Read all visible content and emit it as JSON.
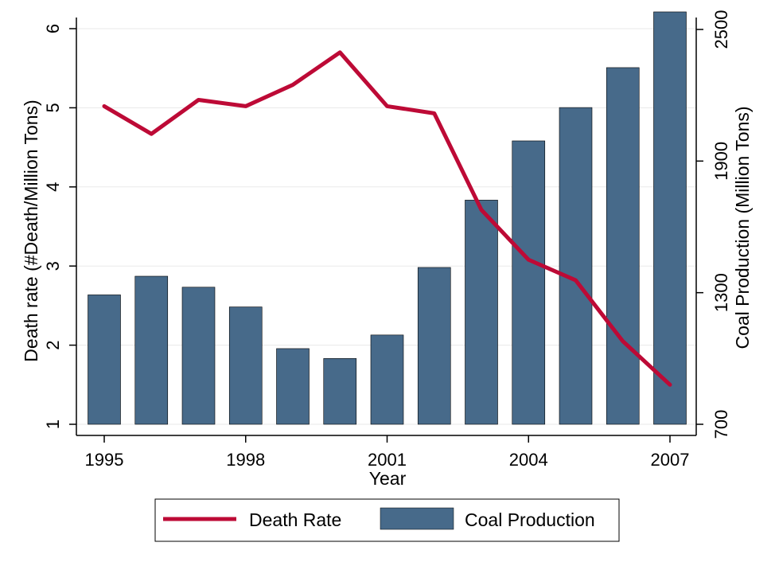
{
  "chart_data": {
    "type": "bar+line",
    "xlabel": "Year",
    "ylabel_left": "Death rate (#Death/Million Tons)",
    "ylabel_right": "Coal Production (Million Tons)",
    "x": [
      1995,
      1996,
      1997,
      1998,
      1999,
      2000,
      2001,
      2002,
      2003,
      2004,
      2005,
      2006,
      2007
    ],
    "x_ticks": [
      1995,
      1998,
      2001,
      2004,
      2007
    ],
    "x_tick_labels": [
      "1995",
      "1998",
      "2001",
      "2004",
      "2007"
    ],
    "ylim_left": [
      1,
      6
    ],
    "y_ticks_left": [
      1,
      2,
      3,
      4,
      5,
      6
    ],
    "y_tick_labels_left": [
      "1",
      "2",
      "3",
      "4",
      "5",
      "6"
    ],
    "ylim_right": [
      700,
      2580
    ],
    "y_ticks_right": [
      700,
      1300,
      1900,
      2500
    ],
    "y_tick_labels_right": [
      "700",
      "1300",
      "1900",
      "2500"
    ],
    "grid": "horizontal",
    "legend_position": "bottom",
    "series": [
      {
        "name": "Death Rate",
        "type": "line",
        "axis": "left",
        "color": "#bd0a36",
        "values": [
          5.02,
          4.67,
          5.1,
          5.02,
          5.29,
          5.7,
          5.02,
          4.93,
          3.71,
          3.08,
          2.82,
          2.05,
          1.5
        ]
      },
      {
        "name": "Coal Production",
        "type": "bar",
        "axis": "right",
        "color": "#476a8a",
        "values": [
          1290,
          1375,
          1325,
          1235,
          1045,
          1000,
          1107,
          1415,
          1722,
          1992,
          2144,
          2326,
          2580
        ]
      }
    ]
  }
}
